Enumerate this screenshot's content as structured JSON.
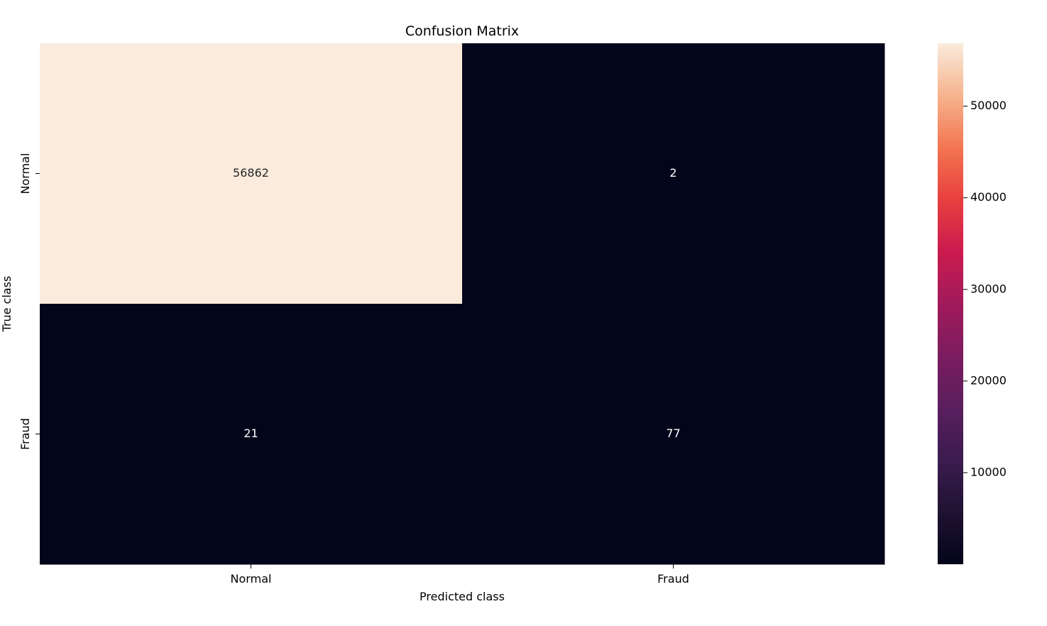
{
  "chart_data": {
    "type": "heatmap",
    "title": "Confusion Matrix",
    "xlabel": "Predicted class",
    "ylabel": "True class",
    "x_categories": [
      "Normal",
      "Fraud"
    ],
    "y_categories": [
      "Normal",
      "Fraud"
    ],
    "values": [
      [
        56862,
        2
      ],
      [
        21,
        77
      ]
    ],
    "colorbar": {
      "min": 2,
      "max": 56862,
      "ticks": [
        10000,
        20000,
        30000,
        40000,
        50000
      ],
      "colormap": "rocket"
    },
    "annotations": true,
    "grid": false
  }
}
